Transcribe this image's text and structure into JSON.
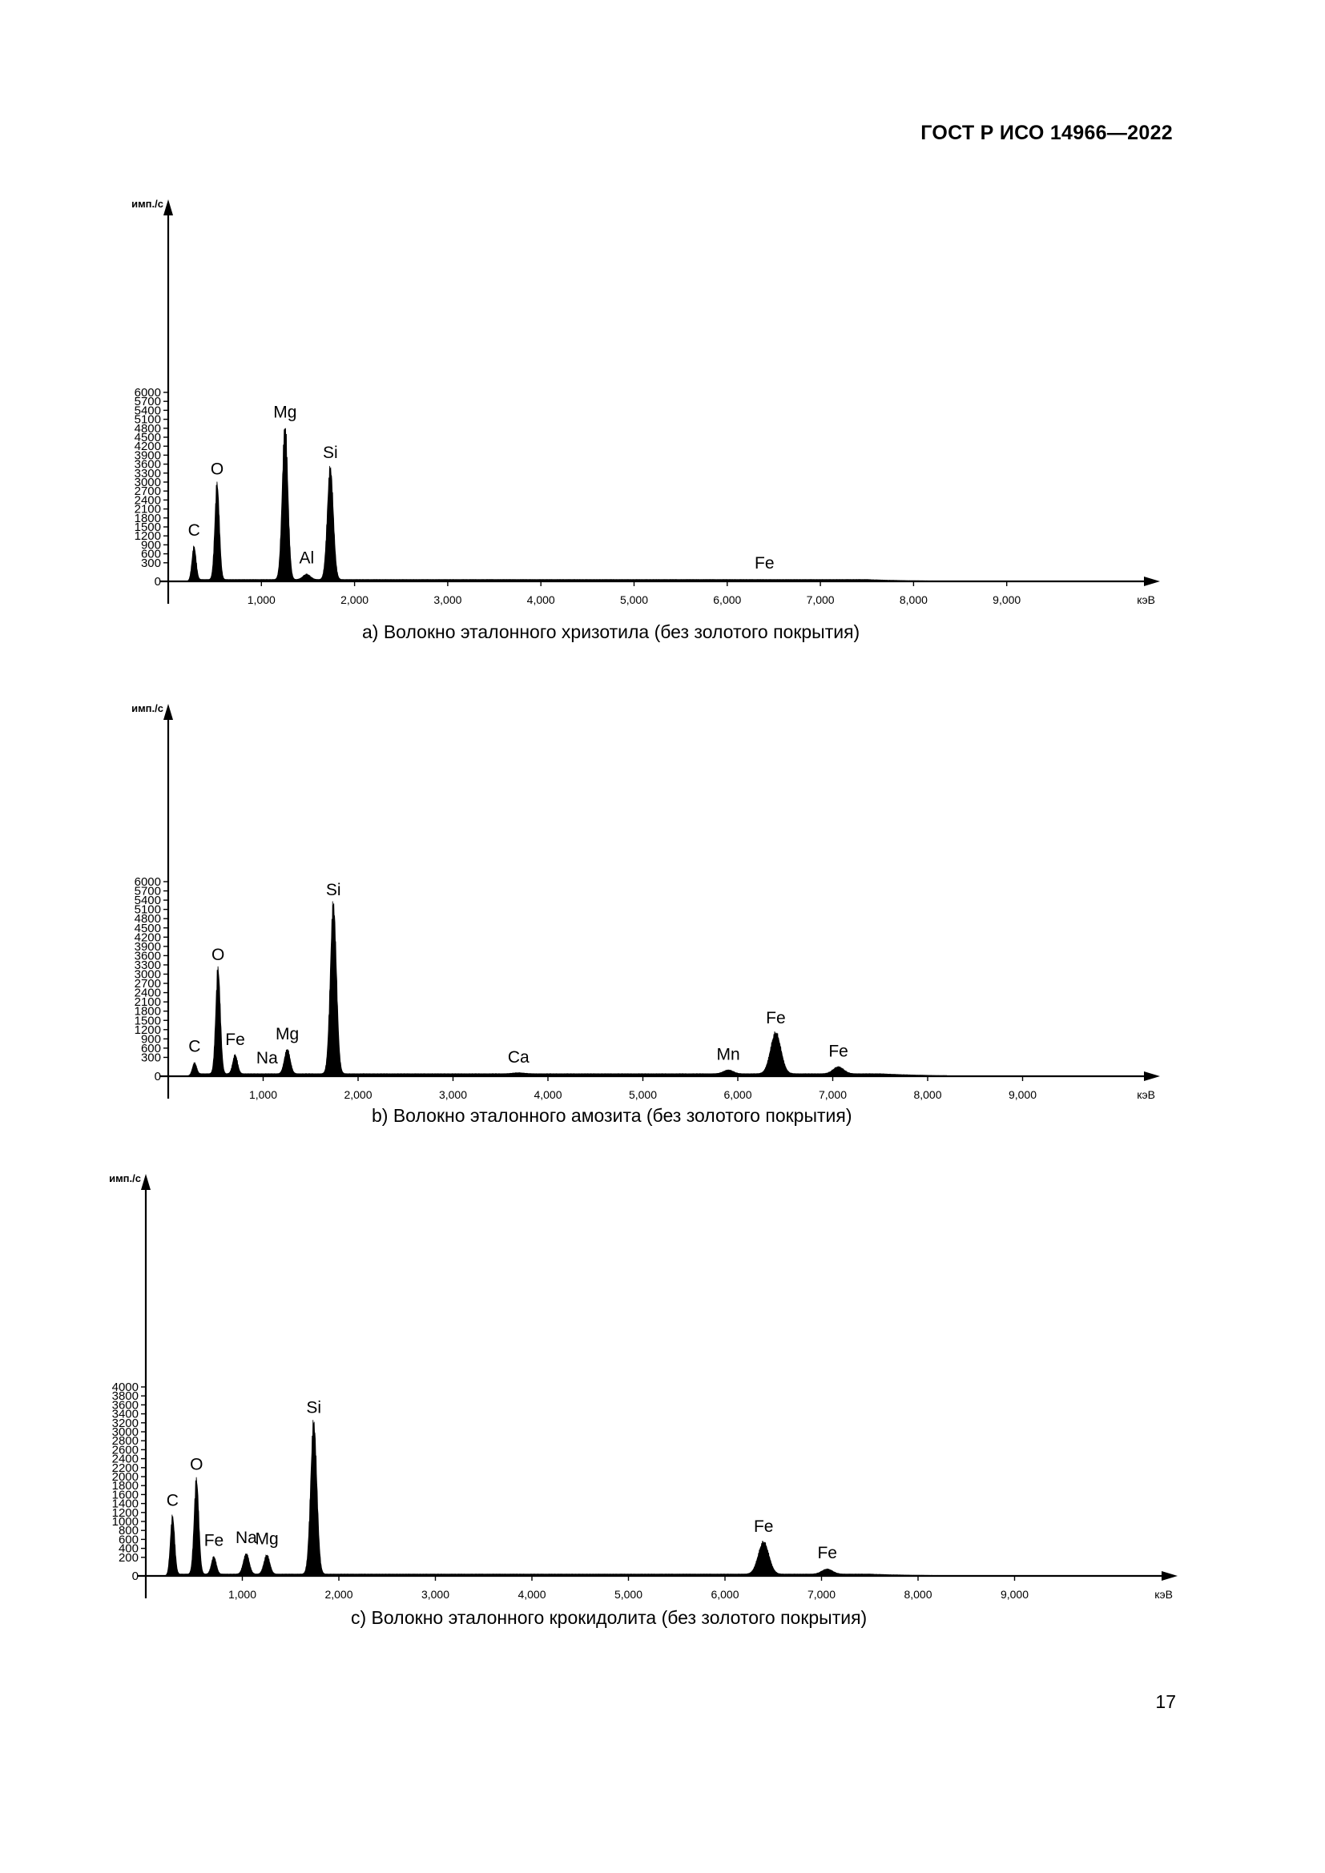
{
  "header": {
    "doc_id": "ГОСТ Р ИСО 14966—2022"
  },
  "page_number": "17",
  "charts": [
    {
      "caption": "a)  Волокно эталонного хризотила (без золотого покрытия)",
      "chart_data": {
        "type": "area",
        "ylabel": "имп./с",
        "xlabel": "кэВ",
        "yticks": [
          0,
          300,
          600,
          900,
          1200,
          1500,
          1800,
          2100,
          2400,
          2700,
          3000,
          3300,
          3600,
          3900,
          4200,
          4500,
          4800,
          5100,
          5400,
          5700,
          6000
        ],
        "xticks": [
          "1,000",
          "2,000",
          "3,000",
          "4,000",
          "5,000",
          "6,000",
          "7,000",
          "8,000",
          "9,000"
        ],
        "xlim": [
          0,
          10.3
        ],
        "ylim": [
          0,
          6800
        ],
        "baseline": 60,
        "peaks": [
          {
            "label": "C",
            "x": 0.277,
            "y": 1100,
            "width": 0.022
          },
          {
            "label": "O",
            "x": 0.525,
            "y": 3150,
            "width": 0.024
          },
          {
            "label": "Mg",
            "x": 1.254,
            "y": 5050,
            "width": 0.03
          },
          {
            "label": "Al",
            "x": 1.486,
            "y": 170,
            "width": 0.04
          },
          {
            "label": "Si",
            "x": 1.74,
            "y": 3700,
            "width": 0.032
          },
          {
            "label": "Fe",
            "x": 6.4,
            "y": 0,
            "width": 0.05
          }
        ]
      }
    },
    {
      "caption": "b)  Волокно эталонного амозита (без золотого покрытия)",
      "chart_data": {
        "type": "area",
        "ylabel": "имп./с",
        "xlabel": "кэВ",
        "yticks": [
          0,
          300,
          600,
          900,
          1200,
          1500,
          1800,
          2100,
          2400,
          2700,
          3000,
          3300,
          3600,
          3900,
          4200,
          4500,
          4800,
          5100,
          5400,
          5700,
          6000
        ],
        "xticks": [
          "1,000",
          "2,000",
          "3,000",
          "4,000",
          "5,000",
          "6,000",
          "7,000",
          "8,000",
          "9,000"
        ],
        "xlim": [
          0,
          10.3
        ],
        "ylim": [
          0,
          6800
        ],
        "baseline": 80,
        "peaks": [
          {
            "label": "C",
            "x": 0.277,
            "y": 380,
            "width": 0.022
          },
          {
            "label": "O",
            "x": 0.525,
            "y": 3350,
            "width": 0.024
          },
          {
            "label": "Fe",
            "x": 0.705,
            "y": 600,
            "width": 0.025
          },
          {
            "label": "Na",
            "x": 1.041,
            "y": 0,
            "width": 0.03
          },
          {
            "label": "Mg",
            "x": 1.254,
            "y": 780,
            "width": 0.03
          },
          {
            "label": "Si",
            "x": 1.74,
            "y": 5450,
            "width": 0.032
          },
          {
            "label": "Ca",
            "x": 3.69,
            "y": 30,
            "width": 0.06
          },
          {
            "label": "Mn",
            "x": 5.9,
            "y": 120,
            "width": 0.05
          },
          {
            "label": "Fe",
            "x": 6.4,
            "y": 1300,
            "width": 0.055
          },
          {
            "label": "Fe",
            "x": 7.06,
            "y": 220,
            "width": 0.055
          }
        ]
      }
    },
    {
      "caption": "c)  Волокно эталонного крокидолита (без золотого покрытия)",
      "chart_data": {
        "type": "area",
        "ylabel": "имп./с",
        "xlabel": "кэВ",
        "yticks": [
          0,
          200,
          400,
          600,
          800,
          1000,
          1200,
          1400,
          1600,
          1800,
          2000,
          2200,
          2400,
          2600,
          2800,
          3000,
          3200,
          3400,
          3600,
          3800,
          4000
        ],
        "xticks": [
          "1,000",
          "2,000",
          "3,000",
          "4,000",
          "5,000",
          "6,000",
          "7,000",
          "8,000",
          "9,000"
        ],
        "xlim": [
          0,
          10.3
        ],
        "ylim": [
          0,
          4500
        ],
        "baseline": 40,
        "peaks": [
          {
            "label": "C",
            "x": 0.277,
            "y": 1280,
            "width": 0.022
          },
          {
            "label": "O",
            "x": 0.525,
            "y": 2080,
            "width": 0.024
          },
          {
            "label": "Fe",
            "x": 0.705,
            "y": 380,
            "width": 0.025
          },
          {
            "label": "Na",
            "x": 1.041,
            "y": 450,
            "width": 0.03
          },
          {
            "label": "Mg",
            "x": 1.254,
            "y": 420,
            "width": 0.03
          },
          {
            "label": "Si",
            "x": 1.74,
            "y": 3350,
            "width": 0.032
          },
          {
            "label": "Fe",
            "x": 6.4,
            "y": 700,
            "width": 0.055
          },
          {
            "label": "Fe",
            "x": 7.06,
            "y": 110,
            "width": 0.055
          }
        ]
      }
    }
  ]
}
